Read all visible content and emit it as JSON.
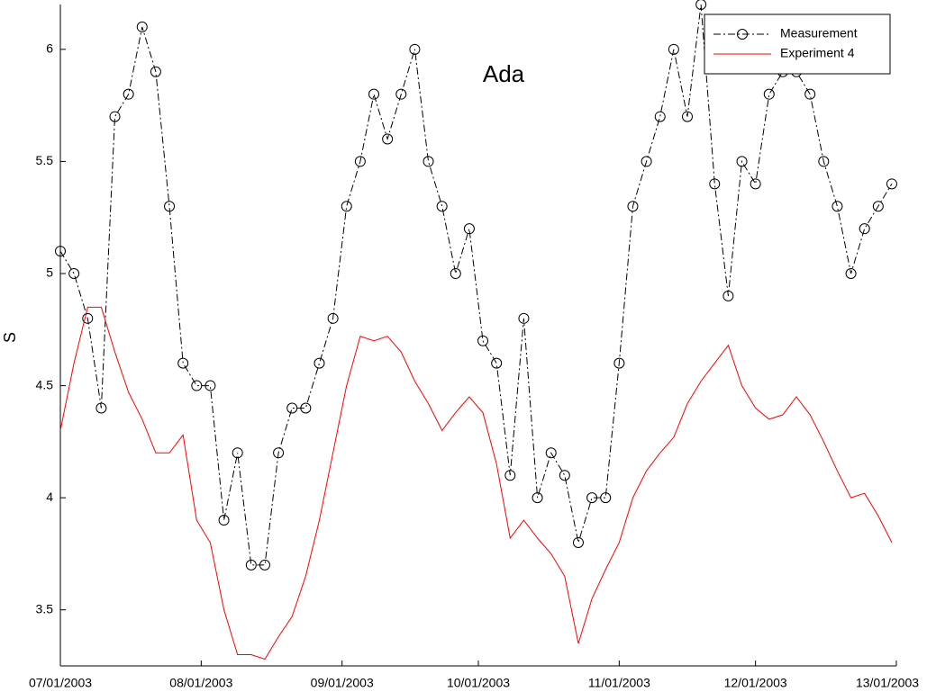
{
  "chart_data": {
    "type": "line",
    "title": "Ada",
    "y_label": "S",
    "x": [
      "2003-07-01",
      "2003-07-04",
      "2003-07-07",
      "2003-07-10",
      "2003-07-13",
      "2003-07-16",
      "2003-07-19",
      "2003-07-22",
      "2003-07-25",
      "2003-07-28",
      "2003-07-31",
      "2003-08-03",
      "2003-08-06",
      "2003-08-09",
      "2003-08-12",
      "2003-08-15",
      "2003-08-18",
      "2003-08-21",
      "2003-08-24",
      "2003-08-27",
      "2003-08-30",
      "2003-09-02",
      "2003-09-05",
      "2003-09-08",
      "2003-09-11",
      "2003-09-14",
      "2003-09-17",
      "2003-09-20",
      "2003-09-23",
      "2003-09-26",
      "2003-09-29",
      "2003-10-02",
      "2003-10-05",
      "2003-10-08",
      "2003-10-11",
      "2003-10-14",
      "2003-10-17",
      "2003-10-20",
      "2003-10-23",
      "2003-10-26",
      "2003-10-29",
      "2003-11-01",
      "2003-11-04",
      "2003-11-07",
      "2003-11-10",
      "2003-11-13",
      "2003-11-16",
      "2003-11-19",
      "2003-11-22",
      "2003-11-25",
      "2003-11-28",
      "2003-12-01",
      "2003-12-04",
      "2003-12-07",
      "2003-12-10",
      "2003-12-13",
      "2003-12-16",
      "2003-12-19",
      "2003-12-22",
      "2003-12-25",
      "2003-12-28",
      "2003-12-31"
    ],
    "series": [
      {
        "name": "Measurement",
        "color": "#000000",
        "linestyle": "dashdot",
        "marker": "circle",
        "values": [
          5.1,
          5.0,
          4.8,
          4.4,
          5.7,
          5.8,
          6.1,
          5.9,
          5.3,
          4.6,
          4.5,
          4.5,
          3.9,
          4.2,
          3.7,
          3.7,
          4.2,
          4.4,
          4.4,
          4.6,
          4.8,
          5.3,
          5.5,
          5.8,
          5.6,
          5.8,
          6.0,
          5.5,
          5.3,
          5.0,
          5.2,
          4.7,
          4.6,
          4.1,
          4.8,
          4.0,
          4.2,
          4.1,
          3.8,
          4.0,
          4.0,
          4.6,
          5.3,
          5.5,
          5.7,
          6.0,
          5.7,
          6.2,
          5.4,
          4.9,
          5.5,
          5.4,
          5.8,
          5.9,
          5.9,
          5.8,
          5.5,
          5.3,
          5.0,
          5.2,
          5.3,
          5.4
        ]
      },
      {
        "name": "Experiment 4",
        "color": "#ff0000",
        "linestyle": "solid",
        "marker": "none",
        "values": [
          4.3,
          4.6,
          4.85,
          4.85,
          4.65,
          4.47,
          4.35,
          4.2,
          4.2,
          4.28,
          3.9,
          3.8,
          3.5,
          3.3,
          3.3,
          3.28,
          3.38,
          3.47,
          3.65,
          3.9,
          4.2,
          4.5,
          4.72,
          4.7,
          4.72,
          4.65,
          4.52,
          4.42,
          4.3,
          4.38,
          4.45,
          4.38,
          4.15,
          3.82,
          3.9,
          3.82,
          3.75,
          3.65,
          3.35,
          3.55,
          3.68,
          3.8,
          4.0,
          4.12,
          4.2,
          4.27,
          4.42,
          4.52,
          4.6,
          4.68,
          4.5,
          4.4,
          4.35,
          4.37,
          4.45,
          4.37,
          4.25,
          4.12,
          4.0,
          4.02,
          3.92,
          3.8
        ]
      }
    ],
    "xlim": [
      "2003-07-01",
      "2004-01-01"
    ],
    "xticks": [
      {
        "value": "2003-07-01",
        "label": "07/01/2003"
      },
      {
        "value": "2003-08-01",
        "label": "08/01/2003"
      },
      {
        "value": "2003-09-01",
        "label": "09/01/2003"
      },
      {
        "value": "2003-10-01",
        "label": "10/01/2003"
      },
      {
        "value": "2003-11-01",
        "label": "11/01/2003"
      },
      {
        "value": "2003-12-01",
        "label": "12/01/2003"
      },
      {
        "value": "2004-01-01",
        "label": "13/01/2003"
      }
    ],
    "ylim": [
      3.25,
      6.2
    ],
    "yticks": [
      3.5,
      4,
      4.5,
      5,
      5.5,
      6
    ],
    "grid": false,
    "legend": "upper right"
  }
}
